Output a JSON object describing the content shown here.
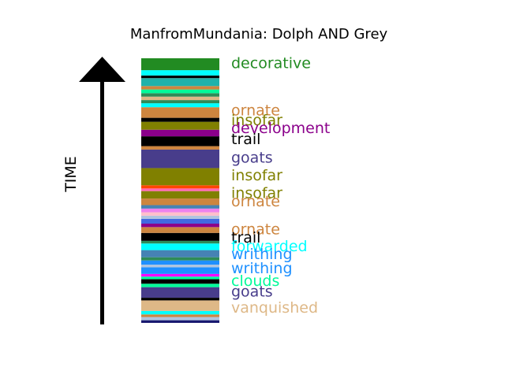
{
  "chart_data": {
    "type": "timeline",
    "title": "ManfromMundania: Dolph AND Grey",
    "ylabel": "TIME",
    "ylim": [
      0,
      1
    ],
    "segments": [
      {
        "start": 0.0,
        "end": 0.01,
        "color": "#191970"
      },
      {
        "start": 0.01,
        "end": 0.022,
        "color": "#b0c4de"
      },
      {
        "start": 0.022,
        "end": 0.032,
        "color": "#cd853f"
      },
      {
        "start": 0.032,
        "end": 0.045,
        "color": "#00ffff"
      },
      {
        "start": 0.045,
        "end": 0.085,
        "color": "#deb887"
      },
      {
        "start": 0.085,
        "end": 0.095,
        "color": "#000000"
      },
      {
        "start": 0.095,
        "end": 0.135,
        "color": "#483d8b"
      },
      {
        "start": 0.135,
        "end": 0.148,
        "color": "#00fa9a"
      },
      {
        "start": 0.148,
        "end": 0.165,
        "color": "#000000"
      },
      {
        "start": 0.165,
        "end": 0.175,
        "color": "#00fa9a"
      },
      {
        "start": 0.175,
        "end": 0.185,
        "color": "#ff00ff"
      },
      {
        "start": 0.185,
        "end": 0.21,
        "color": "#1e90ff"
      },
      {
        "start": 0.21,
        "end": 0.22,
        "color": "#b0c4de"
      },
      {
        "start": 0.22,
        "end": 0.236,
        "color": "#1e90ff"
      },
      {
        "start": 0.236,
        "end": 0.248,
        "color": "#2e8b57"
      },
      {
        "start": 0.248,
        "end": 0.275,
        "color": "#4682b4"
      },
      {
        "start": 0.275,
        "end": 0.3,
        "color": "#00ffff"
      },
      {
        "start": 0.3,
        "end": 0.31,
        "color": "#2e8b57"
      },
      {
        "start": 0.31,
        "end": 0.34,
        "color": "#000000"
      },
      {
        "start": 0.34,
        "end": 0.362,
        "color": "#cd853f"
      },
      {
        "start": 0.362,
        "end": 0.375,
        "color": "#8b008b"
      },
      {
        "start": 0.375,
        "end": 0.393,
        "color": "#4169e1"
      },
      {
        "start": 0.393,
        "end": 0.405,
        "color": "#b0c4de"
      },
      {
        "start": 0.405,
        "end": 0.418,
        "color": "#ffc0cb"
      },
      {
        "start": 0.418,
        "end": 0.432,
        "color": "#ee82ee"
      },
      {
        "start": 0.432,
        "end": 0.445,
        "color": "#4682b4"
      },
      {
        "start": 0.445,
        "end": 0.47,
        "color": "#cd853f"
      },
      {
        "start": 0.47,
        "end": 0.498,
        "color": "#808000"
      },
      {
        "start": 0.498,
        "end": 0.508,
        "color": "#ff69b4"
      },
      {
        "start": 0.508,
        "end": 0.52,
        "color": "#ff4500"
      },
      {
        "start": 0.52,
        "end": 0.585,
        "color": "#808000"
      },
      {
        "start": 0.585,
        "end": 0.655,
        "color": "#483d8b"
      },
      {
        "start": 0.655,
        "end": 0.668,
        "color": "#cd853f"
      },
      {
        "start": 0.668,
        "end": 0.705,
        "color": "#000000"
      },
      {
        "start": 0.705,
        "end": 0.73,
        "color": "#8b008b"
      },
      {
        "start": 0.73,
        "end": 0.76,
        "color": "#808000"
      },
      {
        "start": 0.76,
        "end": 0.775,
        "color": "#000000"
      },
      {
        "start": 0.775,
        "end": 0.815,
        "color": "#cd853f"
      },
      {
        "start": 0.815,
        "end": 0.83,
        "color": "#00ffff"
      },
      {
        "start": 0.83,
        "end": 0.842,
        "color": "#2e8b57"
      },
      {
        "start": 0.842,
        "end": 0.855,
        "color": "#deb887"
      },
      {
        "start": 0.855,
        "end": 0.868,
        "color": "#2e8b57"
      },
      {
        "start": 0.868,
        "end": 0.882,
        "color": "#00fa9a"
      },
      {
        "start": 0.882,
        "end": 0.895,
        "color": "#cd853f"
      },
      {
        "start": 0.895,
        "end": 0.925,
        "color": "#20b2aa"
      },
      {
        "start": 0.925,
        "end": 0.935,
        "color": "#000000"
      },
      {
        "start": 0.935,
        "end": 0.955,
        "color": "#00ffff"
      },
      {
        "start": 0.955,
        "end": 1.0,
        "color": "#228b22"
      }
    ],
    "labels": [
      {
        "text": "decorative",
        "y": 0.983,
        "color": "#228b22"
      },
      {
        "text": "ornate",
        "y": 0.805,
        "color": "#cd853f"
      },
      {
        "text": "insofar",
        "y": 0.768,
        "color": "#808000"
      },
      {
        "text": "development",
        "y": 0.738,
        "color": "#8b008b"
      },
      {
        "text": "trail",
        "y": 0.697,
        "color": "#000000"
      },
      {
        "text": "goats",
        "y": 0.627,
        "color": "#483d8b"
      },
      {
        "text": "insofar",
        "y": 0.56,
        "color": "#808000"
      },
      {
        "text": "insofar",
        "y": 0.492,
        "color": "#808000"
      },
      {
        "text": "ornate",
        "y": 0.462,
        "color": "#cd853f"
      },
      {
        "text": "ornate",
        "y": 0.355,
        "color": "#cd853f"
      },
      {
        "text": "trail",
        "y": 0.325,
        "color": "#000000"
      },
      {
        "text": "forwarded",
        "y": 0.292,
        "color": "#00ffff"
      },
      {
        "text": "writhing",
        "y": 0.262,
        "color": "#1e90ff"
      },
      {
        "text": "writhing",
        "y": 0.208,
        "color": "#1e90ff"
      },
      {
        "text": "clouds",
        "y": 0.16,
        "color": "#00fa9a"
      },
      {
        "text": "goats",
        "y": 0.12,
        "color": "#483d8b"
      },
      {
        "text": "vanquished",
        "y": 0.06,
        "color": "#deb887"
      }
    ]
  }
}
